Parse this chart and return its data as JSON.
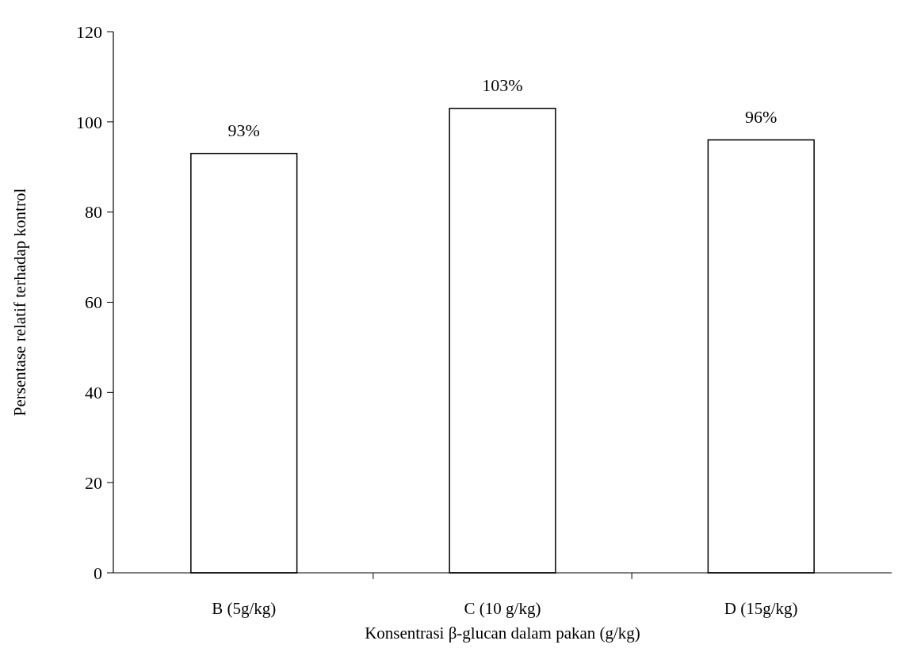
{
  "chart_data": {
    "type": "bar",
    "xlabel": "Konsentrasi β-glucan dalam pakan (g/kg)",
    "ylabel": "Persentase relatif terhadap kontrol",
    "categories": [
      "B (5g/kg)",
      "C (10 g/kg)",
      "D (15g/kg)"
    ],
    "values": [
      93,
      103,
      96
    ],
    "value_labels": [
      "93%",
      "103%",
      "96%"
    ],
    "color": "#ffffff",
    "ylim": [
      0,
      120
    ],
    "yticks": [
      0,
      20,
      40,
      60,
      80,
      100,
      120
    ]
  }
}
